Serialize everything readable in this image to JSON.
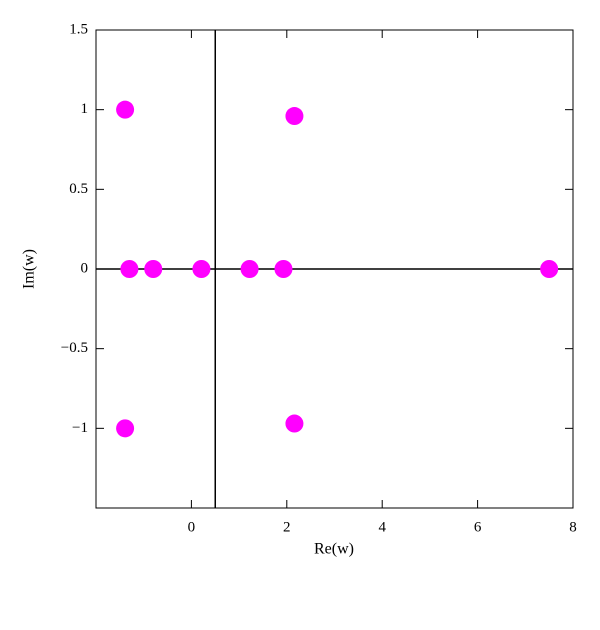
{
  "chart_data": {
    "type": "scatter",
    "xlabel": "Re(w)",
    "ylabel": "Im(w)",
    "xlim": [
      -2,
      8
    ],
    "ylim": [
      -1.5,
      1.5
    ],
    "xticks": [
      0,
      2,
      4,
      6,
      8
    ],
    "yticks": [
      {
        "value": -1,
        "label": "−1"
      },
      {
        "value": -0.5,
        "label": "−0.5"
      },
      0,
      0.5,
      1,
      1.5
    ],
    "vlines": [
      0.5
    ],
    "hlines": [
      0
    ],
    "series": [
      {
        "color": "#ff00ff",
        "x": [
          -1.39,
          2.16,
          -1.3,
          -0.8,
          0.21,
          1.22,
          1.93,
          7.5,
          -1.39,
          2.16
        ],
        "values": [
          1.0,
          0.96,
          0,
          0,
          0,
          0,
          0,
          0,
          -1.0,
          -0.97
        ]
      }
    ]
  }
}
